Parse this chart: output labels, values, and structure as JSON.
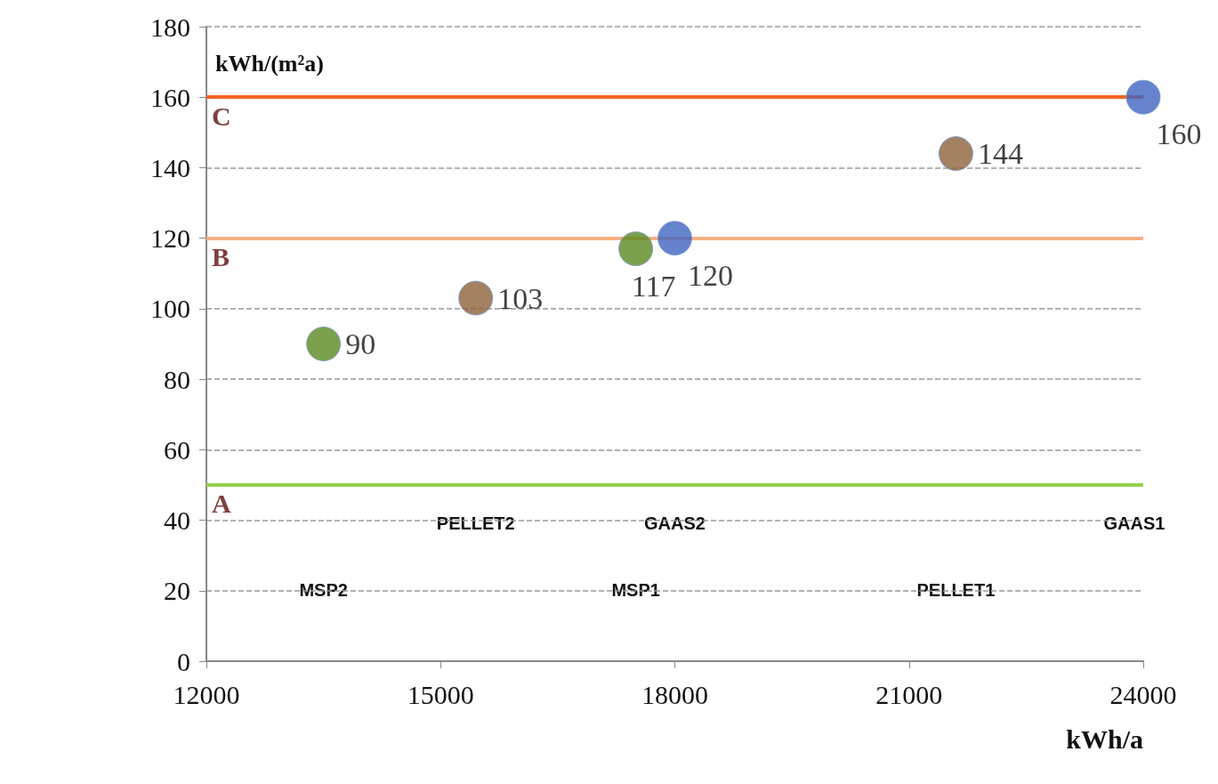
{
  "chart_data": {
    "type": "scatter",
    "xlabel": "kWh/a",
    "ylabel": "kWh/(m²a)",
    "x": [
      13500,
      15450,
      17500,
      18000,
      21600,
      24000
    ],
    "values": [
      90,
      103,
      117,
      120,
      144,
      160
    ],
    "colors": [
      "#5b8a1f",
      "#8c6239",
      "#5b8a1f",
      "#4064c0",
      "#8c6239",
      "#4064c0"
    ],
    "data_labels": true,
    "marker": "circle",
    "grid": "y",
    "xlim": [
      12000,
      24000
    ],
    "xticks": [
      12000,
      15000,
      18000,
      21000,
      24000
    ],
    "ylim": [
      0,
      180
    ],
    "yticks": [
      0,
      20,
      40,
      60,
      80,
      100,
      120,
      140,
      160,
      180
    ],
    "ref_lines": [
      {
        "axis": "y",
        "value": 160,
        "label": "C",
        "color": "#f26522"
      },
      {
        "axis": "y",
        "value": 120,
        "label": "B",
        "color": "#f4b183"
      },
      {
        "axis": "y",
        "value": 50,
        "label": "A",
        "color": "#92d050"
      }
    ],
    "annotations": [
      "MSP2",
      "PELLET2",
      "MSP1",
      "GAAS2",
      "PELLET1",
      "GAAS1"
    ]
  }
}
